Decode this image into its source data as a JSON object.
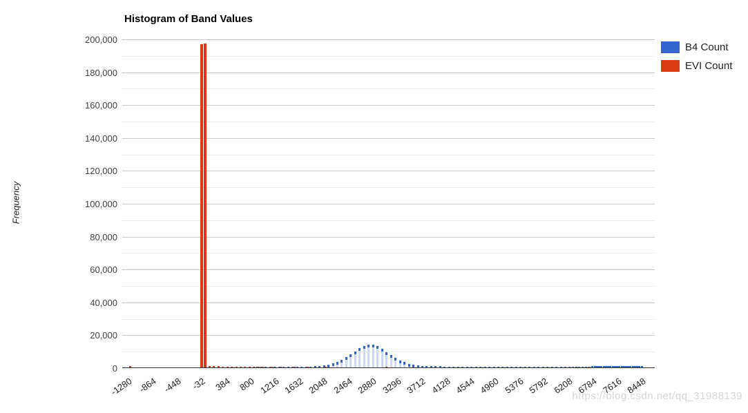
{
  "page": {
    "watermark": "https://blog.csdn.net/qq_31988139"
  },
  "chart_data": {
    "type": "bar",
    "subtype": "histogram",
    "title": "Histogram of Band Values",
    "xlabel": "",
    "ylabel": "Frequency",
    "ylim": [
      0,
      200000
    ],
    "grid": true,
    "legend_position": "top-right",
    "y_tick_values": [
      0,
      20000,
      40000,
      60000,
      80000,
      100000,
      120000,
      140000,
      160000,
      180000,
      200000
    ],
    "y_tick_labels": [
      "0",
      "20,000",
      "40,000",
      "60,000",
      "80,000",
      "100,000",
      "120,000",
      "140,000",
      "160,000",
      "180,000",
      "200,000"
    ],
    "y_minor_tick_step": 10000,
    "x_tick_values": [
      -1280,
      -864,
      -448,
      -32,
      384,
      800,
      1216,
      1632,
      2048,
      2464,
      2880,
      3296,
      3712,
      4128,
      4544,
      4960,
      5376,
      5792,
      6208,
      6784,
      7616,
      8448
    ],
    "x_tick_labels": [
      "-1280",
      "-864",
      "-448",
      "-32",
      "384",
      "800",
      "1216",
      "1632",
      "2048",
      "2464",
      "2880",
      "3296",
      "3712",
      "4128",
      "4544",
      "4960",
      "5376",
      "5792",
      "6208",
      "6784",
      "7616",
      "8448"
    ],
    "series": [
      {
        "name": "B4 Count",
        "color": "#3366cc",
        "fill": "#ccd9f1",
        "buckets": [
          [
            904,
            120
          ],
          [
            980,
            130
          ],
          [
            1056,
            140
          ],
          [
            1132,
            150
          ],
          [
            1208,
            160
          ],
          [
            1284,
            180
          ],
          [
            1360,
            200
          ],
          [
            1436,
            230
          ],
          [
            1512,
            260
          ],
          [
            1588,
            300
          ],
          [
            1664,
            360
          ],
          [
            1740,
            440
          ],
          [
            1816,
            560
          ],
          [
            1892,
            720
          ],
          [
            1968,
            950
          ],
          [
            2044,
            1300
          ],
          [
            2120,
            1800
          ],
          [
            2196,
            2500
          ],
          [
            2272,
            3400
          ],
          [
            2348,
            4600
          ],
          [
            2424,
            6100
          ],
          [
            2500,
            7900
          ],
          [
            2576,
            9800
          ],
          [
            2652,
            11600
          ],
          [
            2728,
            13100
          ],
          [
            2804,
            14000
          ],
          [
            2880,
            13800
          ],
          [
            2956,
            12900
          ],
          [
            3032,
            11300
          ],
          [
            3108,
            9400
          ],
          [
            3184,
            7500
          ],
          [
            3260,
            5800
          ],
          [
            3336,
            4400
          ],
          [
            3412,
            3200
          ],
          [
            3488,
            2300
          ],
          [
            3564,
            1700
          ],
          [
            3640,
            1250
          ],
          [
            3716,
            950
          ],
          [
            3792,
            800
          ],
          [
            3868,
            720
          ],
          [
            3944,
            680
          ],
          [
            4020,
            650
          ],
          [
            4096,
            630
          ],
          [
            4172,
            620
          ],
          [
            4248,
            610
          ],
          [
            4324,
            600
          ],
          [
            4400,
            600
          ],
          [
            4476,
            590
          ],
          [
            4552,
            590
          ],
          [
            4628,
            580
          ],
          [
            4704,
            580
          ],
          [
            4780,
            570
          ],
          [
            4856,
            570
          ],
          [
            4932,
            560
          ],
          [
            5008,
            560
          ],
          [
            5084,
            550
          ],
          [
            5160,
            550
          ],
          [
            5236,
            550
          ],
          [
            5312,
            540
          ],
          [
            5388,
            540
          ],
          [
            5464,
            540
          ],
          [
            5540,
            530
          ],
          [
            5616,
            530
          ],
          [
            5692,
            530
          ],
          [
            5768,
            520
          ],
          [
            5844,
            520
          ],
          [
            5920,
            520
          ],
          [
            5996,
            510
          ],
          [
            6072,
            510
          ],
          [
            6148,
            510
          ],
          [
            6224,
            500
          ],
          [
            6300,
            520
          ],
          [
            6376,
            540
          ],
          [
            6452,
            560
          ],
          [
            6528,
            580
          ],
          [
            6604,
            600
          ],
          [
            6680,
            620
          ],
          [
            6756,
            640
          ],
          [
            6832,
            660
          ],
          [
            6908,
            680
          ],
          [
            6984,
            700
          ],
          [
            7060,
            720
          ],
          [
            7136,
            740
          ],
          [
            7212,
            760
          ],
          [
            7288,
            780
          ],
          [
            7364,
            800
          ],
          [
            7440,
            820
          ],
          [
            7516,
            840
          ],
          [
            7592,
            860
          ],
          [
            7668,
            880
          ],
          [
            7744,
            900
          ],
          [
            7820,
            910
          ],
          [
            7896,
            920
          ],
          [
            7972,
            930
          ],
          [
            8048,
            940
          ],
          [
            8124,
            950
          ],
          [
            8200,
            960
          ],
          [
            8276,
            970
          ],
          [
            8352,
            980
          ],
          [
            8428,
            990
          ]
        ]
      },
      {
        "name": "EVI Count",
        "color": "#dc3912",
        "fill": "#dc3912",
        "buckets": [
          [
            -1250,
            650
          ],
          [
            -40,
            196500
          ],
          [
            20,
            197000
          ],
          [
            96,
            1000
          ],
          [
            172,
            800
          ],
          [
            248,
            650
          ],
          [
            324,
            550
          ],
          [
            400,
            480
          ],
          [
            476,
            430
          ],
          [
            552,
            390
          ],
          [
            628,
            360
          ],
          [
            704,
            330
          ],
          [
            780,
            310
          ],
          [
            856,
            290
          ],
          [
            932,
            270
          ],
          [
            1008,
            250
          ],
          [
            1160,
            230
          ],
          [
            1312,
            210
          ],
          [
            1540,
            190
          ],
          [
            1768,
            170
          ],
          [
            2072,
            150
          ],
          [
            3100,
            320
          ],
          [
            6700,
            420
          ]
        ]
      }
    ]
  }
}
